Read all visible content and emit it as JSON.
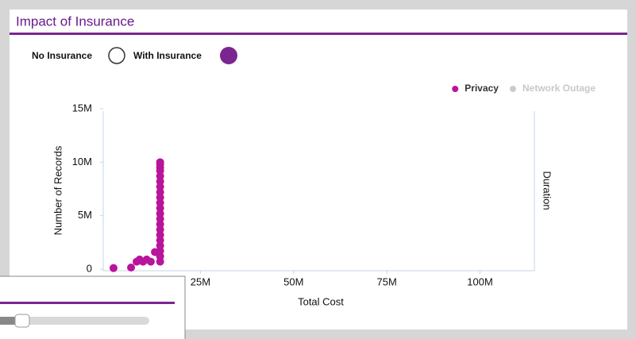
{
  "header": {
    "title": "Impact of Insurance"
  },
  "toggle": {
    "options": [
      "No Insurance",
      "With Insurance"
    ]
  },
  "chart_data": {
    "type": "scatter",
    "x_label": "Total Cost",
    "y_label": "Number of Records",
    "y2_label": "Duration",
    "xlim": [
      0,
      115000000
    ],
    "ylim": [
      0,
      15000000
    ],
    "xticks": [
      {
        "value": 25000000,
        "label": "25M"
      },
      {
        "value": 50000000,
        "label": "50M"
      },
      {
        "value": 75000000,
        "label": "75M"
      },
      {
        "value": 100000000,
        "label": "100M"
      }
    ],
    "yticks": [
      0,
      {
        "value": 5000000,
        "label": "5M"
      },
      {
        "value": 10000000,
        "label": "10M"
      },
      {
        "value": 15000000,
        "label": "15M"
      }
    ],
    "legend": "top-right",
    "series": [
      {
        "name": "Privacy",
        "color": "#b8149c",
        "x": [
          1700000,
          6400000,
          7900000,
          8700000,
          9600000,
          10600000,
          11700000,
          12800000,
          14200000,
          14200000,
          14200000,
          14200000,
          14200000,
          14200000,
          14200000,
          14200000,
          14200000,
          14200000,
          14200000,
          14200000,
          14200000,
          14200000,
          14200000,
          14200000,
          14200000,
          14200000,
          14200000,
          14200000,
          14200000
        ],
        "values": [
          100000,
          150000,
          700000,
          900000,
          700000,
          900000,
          700000,
          1600000,
          700000,
          1200000,
          1700000,
          2200000,
          2700000,
          3200000,
          3700000,
          4200000,
          4700000,
          5200000,
          5700000,
          6200000,
          6700000,
          7200000,
          7700000,
          8200000,
          8700000,
          9200000,
          9500000,
          9800000,
          10000000
        ]
      },
      {
        "name": "Network Outage",
        "color": "#cccccc",
        "x": [],
        "values": []
      }
    ]
  }
}
